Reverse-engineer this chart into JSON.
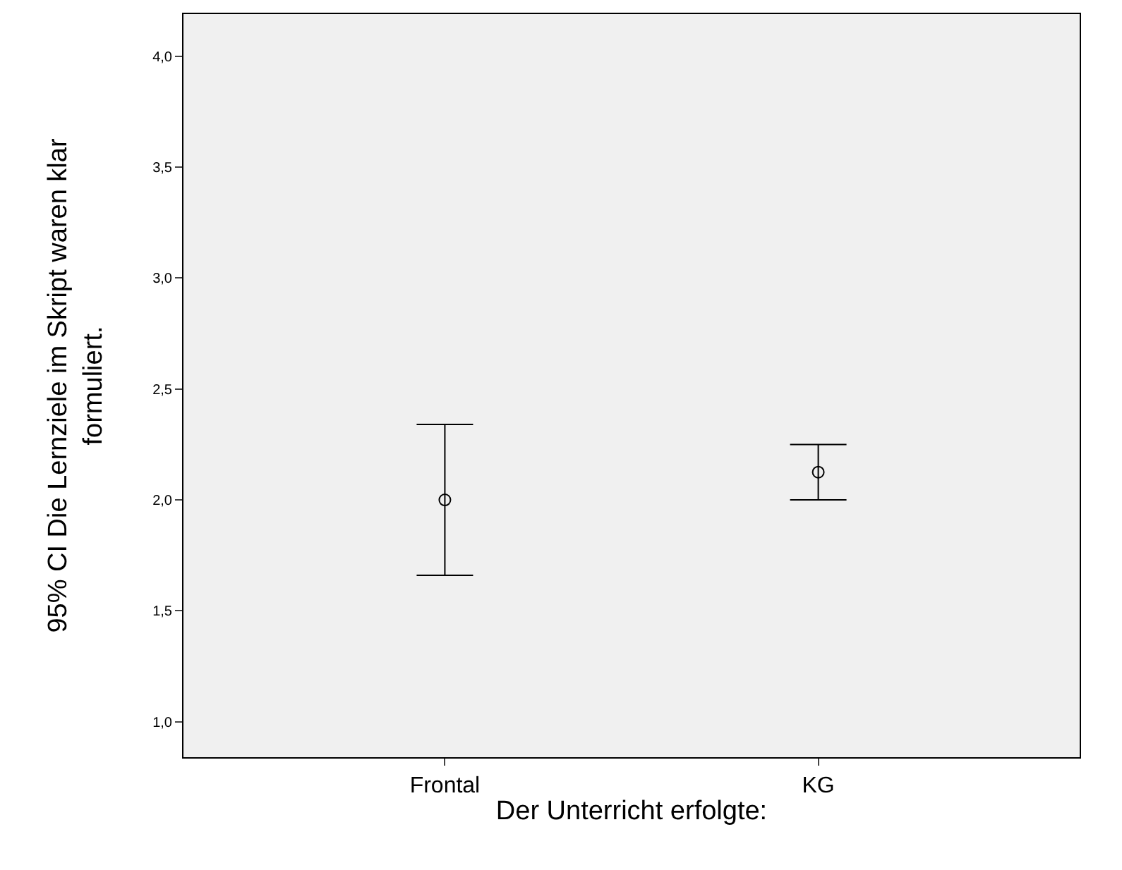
{
  "chart_data": {
    "type": "scatter",
    "xlabel": "Der Unterricht erfolgte:",
    "ylabel": "95% CI Die Lernziele im Skript waren klar formuliert.",
    "categories": [
      "Frontal",
      "KG"
    ],
    "series": [
      {
        "color": "#000000",
        "values": [
          2.0,
          2.125
        ],
        "errors": [
          [
            1.66,
            2.34
          ],
          [
            2.0,
            2.25
          ]
        ]
      }
    ],
    "ylim": [
      0.84,
      4.19
    ],
    "yticks": [
      {
        "value": 1,
        "label": "1,0"
      },
      {
        "value": 1.5,
        "label": "1,5"
      },
      {
        "value": 2,
        "label": "2,0"
      },
      {
        "value": 2.5,
        "label": "2,5"
      },
      {
        "value": 3,
        "label": "3,0"
      },
      {
        "value": 3.5,
        "label": "3,5"
      },
      {
        "value": 4,
        "label": "4,0"
      }
    ],
    "grid": false,
    "legend": false,
    "marker": "circle"
  }
}
